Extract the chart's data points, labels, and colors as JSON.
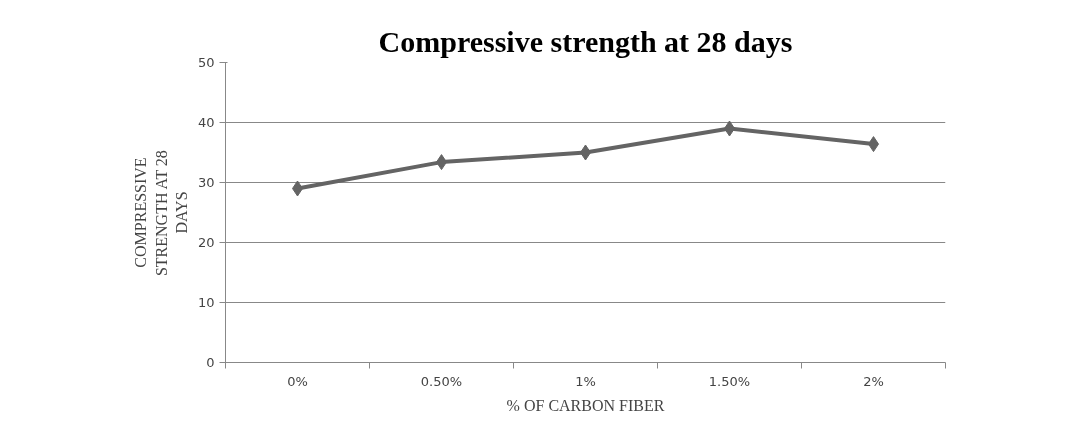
{
  "chart_data": {
    "type": "line",
    "title": "Compressive strength at 28 days",
    "xlabel": "% OF CARBON FIBER",
    "ylabel": "COMPRESSIVE STRENGTH AT 28 DAYS",
    "categories": [
      "0%",
      "0.50%",
      "1%",
      "1.50%",
      "2%"
    ],
    "series": [
      {
        "color": "#646464",
        "values": [
          29.0,
          33.4,
          35.0,
          39.0,
          36.4
        ]
      }
    ],
    "ylim": [
      0,
      50
    ],
    "yticks": [
      0,
      10,
      20,
      30,
      40,
      50
    ],
    "grid": "y",
    "marker": "diamond",
    "line_style": "solid"
  }
}
